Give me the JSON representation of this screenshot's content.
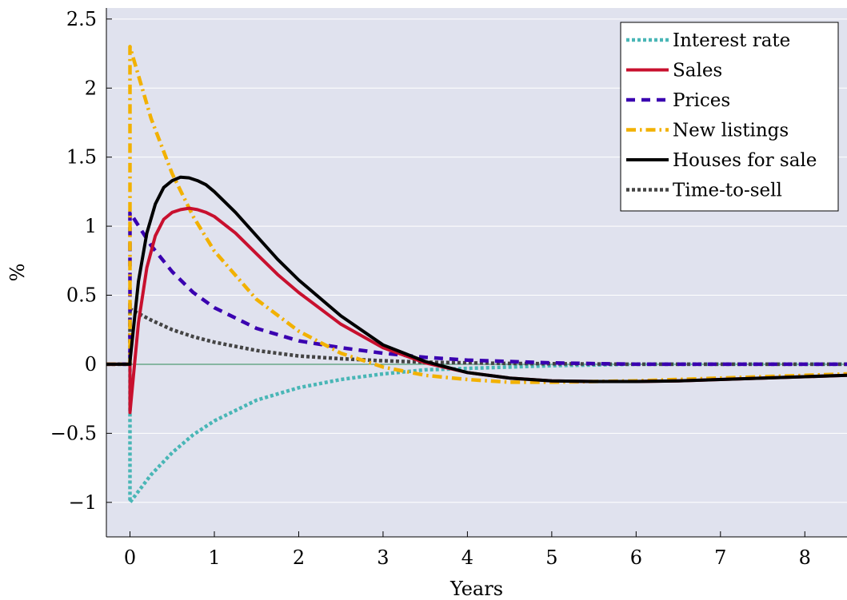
{
  "chart_data": {
    "type": "line",
    "xlabel": "Years",
    "ylabel": "%",
    "xlim": [
      -0.28,
      8.5
    ],
    "ylim": [
      -1.25,
      2.58
    ],
    "xticks": [
      0,
      1,
      2,
      3,
      4,
      5,
      6,
      7,
      8
    ],
    "yticks": [
      -1,
      -0.5,
      0,
      0.5,
      1,
      1.5,
      2,
      2.5
    ],
    "xtick_labels": [
      "0",
      "1",
      "2",
      "3",
      "4",
      "5",
      "6",
      "7",
      "8"
    ],
    "ytick_labels": [
      "−1",
      "−0.5",
      "0",
      "0.5",
      "1",
      "1.5",
      "2",
      "2.5"
    ],
    "grid": true,
    "legend_position": "top-right",
    "background": "#e0e2ee",
    "zero_line_color": "#2e8b57",
    "series": [
      {
        "name": "Interest rate",
        "color": "#49b6b6",
        "style": "dotted",
        "x": [
          -0.28,
          0,
          0,
          0.25,
          0.5,
          0.75,
          1,
          1.5,
          2,
          2.5,
          3,
          3.5,
          4,
          5,
          6,
          7,
          8,
          8.5
        ],
        "y": [
          0,
          0,
          -1.0,
          -0.8,
          -0.64,
          -0.51,
          -0.41,
          -0.26,
          -0.17,
          -0.11,
          -0.07,
          -0.04,
          -0.03,
          -0.01,
          0,
          0,
          0,
          0
        ]
      },
      {
        "name": "Sales",
        "color": "#c8102e",
        "style": "solid",
        "x": [
          -0.28,
          0,
          0,
          0.1,
          0.2,
          0.3,
          0.4,
          0.5,
          0.6,
          0.7,
          0.8,
          0.9,
          1,
          1.25,
          1.5,
          1.75,
          2,
          2.5,
          3,
          3.5,
          4,
          4.5,
          5,
          5.5,
          6,
          6.5,
          7,
          7.5,
          8,
          8.5
        ],
        "y": [
          0,
          0,
          -0.35,
          0.3,
          0.7,
          0.93,
          1.05,
          1.1,
          1.12,
          1.13,
          1.12,
          1.1,
          1.07,
          0.95,
          0.8,
          0.65,
          0.52,
          0.29,
          0.12,
          0.01,
          -0.06,
          -0.1,
          -0.12,
          -0.125,
          -0.125,
          -0.12,
          -0.11,
          -0.1,
          -0.09,
          -0.08
        ]
      },
      {
        "name": "Prices",
        "color": "#3a00b0",
        "style": "dashed",
        "x": [
          -0.28,
          0,
          0,
          0.25,
          0.5,
          0.75,
          1,
          1.5,
          2,
          2.5,
          3,
          3.5,
          4,
          4.5,
          5,
          6,
          7,
          8,
          8.5
        ],
        "y": [
          0,
          0,
          1.1,
          0.86,
          0.67,
          0.52,
          0.41,
          0.26,
          0.17,
          0.12,
          0.08,
          0.05,
          0.03,
          0.02,
          0.01,
          0,
          0,
          0,
          0
        ]
      },
      {
        "name": "New listings",
        "color": "#f2b100",
        "style": "dashdot",
        "x": [
          -0.28,
          0,
          0,
          0.25,
          0.5,
          0.75,
          1,
          1.5,
          2,
          2.5,
          3,
          3.5,
          4,
          4.5,
          5,
          5.5,
          6,
          7,
          8,
          8.5
        ],
        "y": [
          0,
          0,
          2.3,
          1.78,
          1.38,
          1.07,
          0.82,
          0.47,
          0.24,
          0.08,
          -0.02,
          -0.08,
          -0.11,
          -0.13,
          -0.13,
          -0.125,
          -0.12,
          -0.1,
          -0.08,
          -0.07
        ]
      },
      {
        "name": "Houses for sale",
        "color": "#000000",
        "style": "solid",
        "x": [
          -0.28,
          0,
          0,
          0.1,
          0.2,
          0.3,
          0.4,
          0.5,
          0.6,
          0.7,
          0.8,
          0.9,
          1,
          1.25,
          1.5,
          1.75,
          2,
          2.5,
          3,
          3.5,
          4,
          4.5,
          5,
          5.5,
          6,
          6.5,
          7,
          7.5,
          8,
          8.5
        ],
        "y": [
          0,
          0,
          0.02,
          0.6,
          0.95,
          1.16,
          1.28,
          1.33,
          1.355,
          1.35,
          1.33,
          1.3,
          1.25,
          1.1,
          0.93,
          0.76,
          0.61,
          0.35,
          0.14,
          0.02,
          -0.06,
          -0.1,
          -0.12,
          -0.125,
          -0.125,
          -0.12,
          -0.11,
          -0.1,
          -0.09,
          -0.08
        ]
      },
      {
        "name": "Time-to-sell",
        "color": "#444444",
        "style": "dotted",
        "x": [
          -0.28,
          0,
          0,
          0.25,
          0.5,
          0.75,
          1,
          1.5,
          2,
          2.5,
          3,
          3.5,
          4,
          4.5,
          5,
          6,
          7,
          8,
          8.5
        ],
        "y": [
          0,
          0,
          0.4,
          0.32,
          0.25,
          0.2,
          0.16,
          0.1,
          0.06,
          0.04,
          0.025,
          0.015,
          0.01,
          0.006,
          0.004,
          0,
          0,
          0,
          0
        ]
      }
    ]
  }
}
